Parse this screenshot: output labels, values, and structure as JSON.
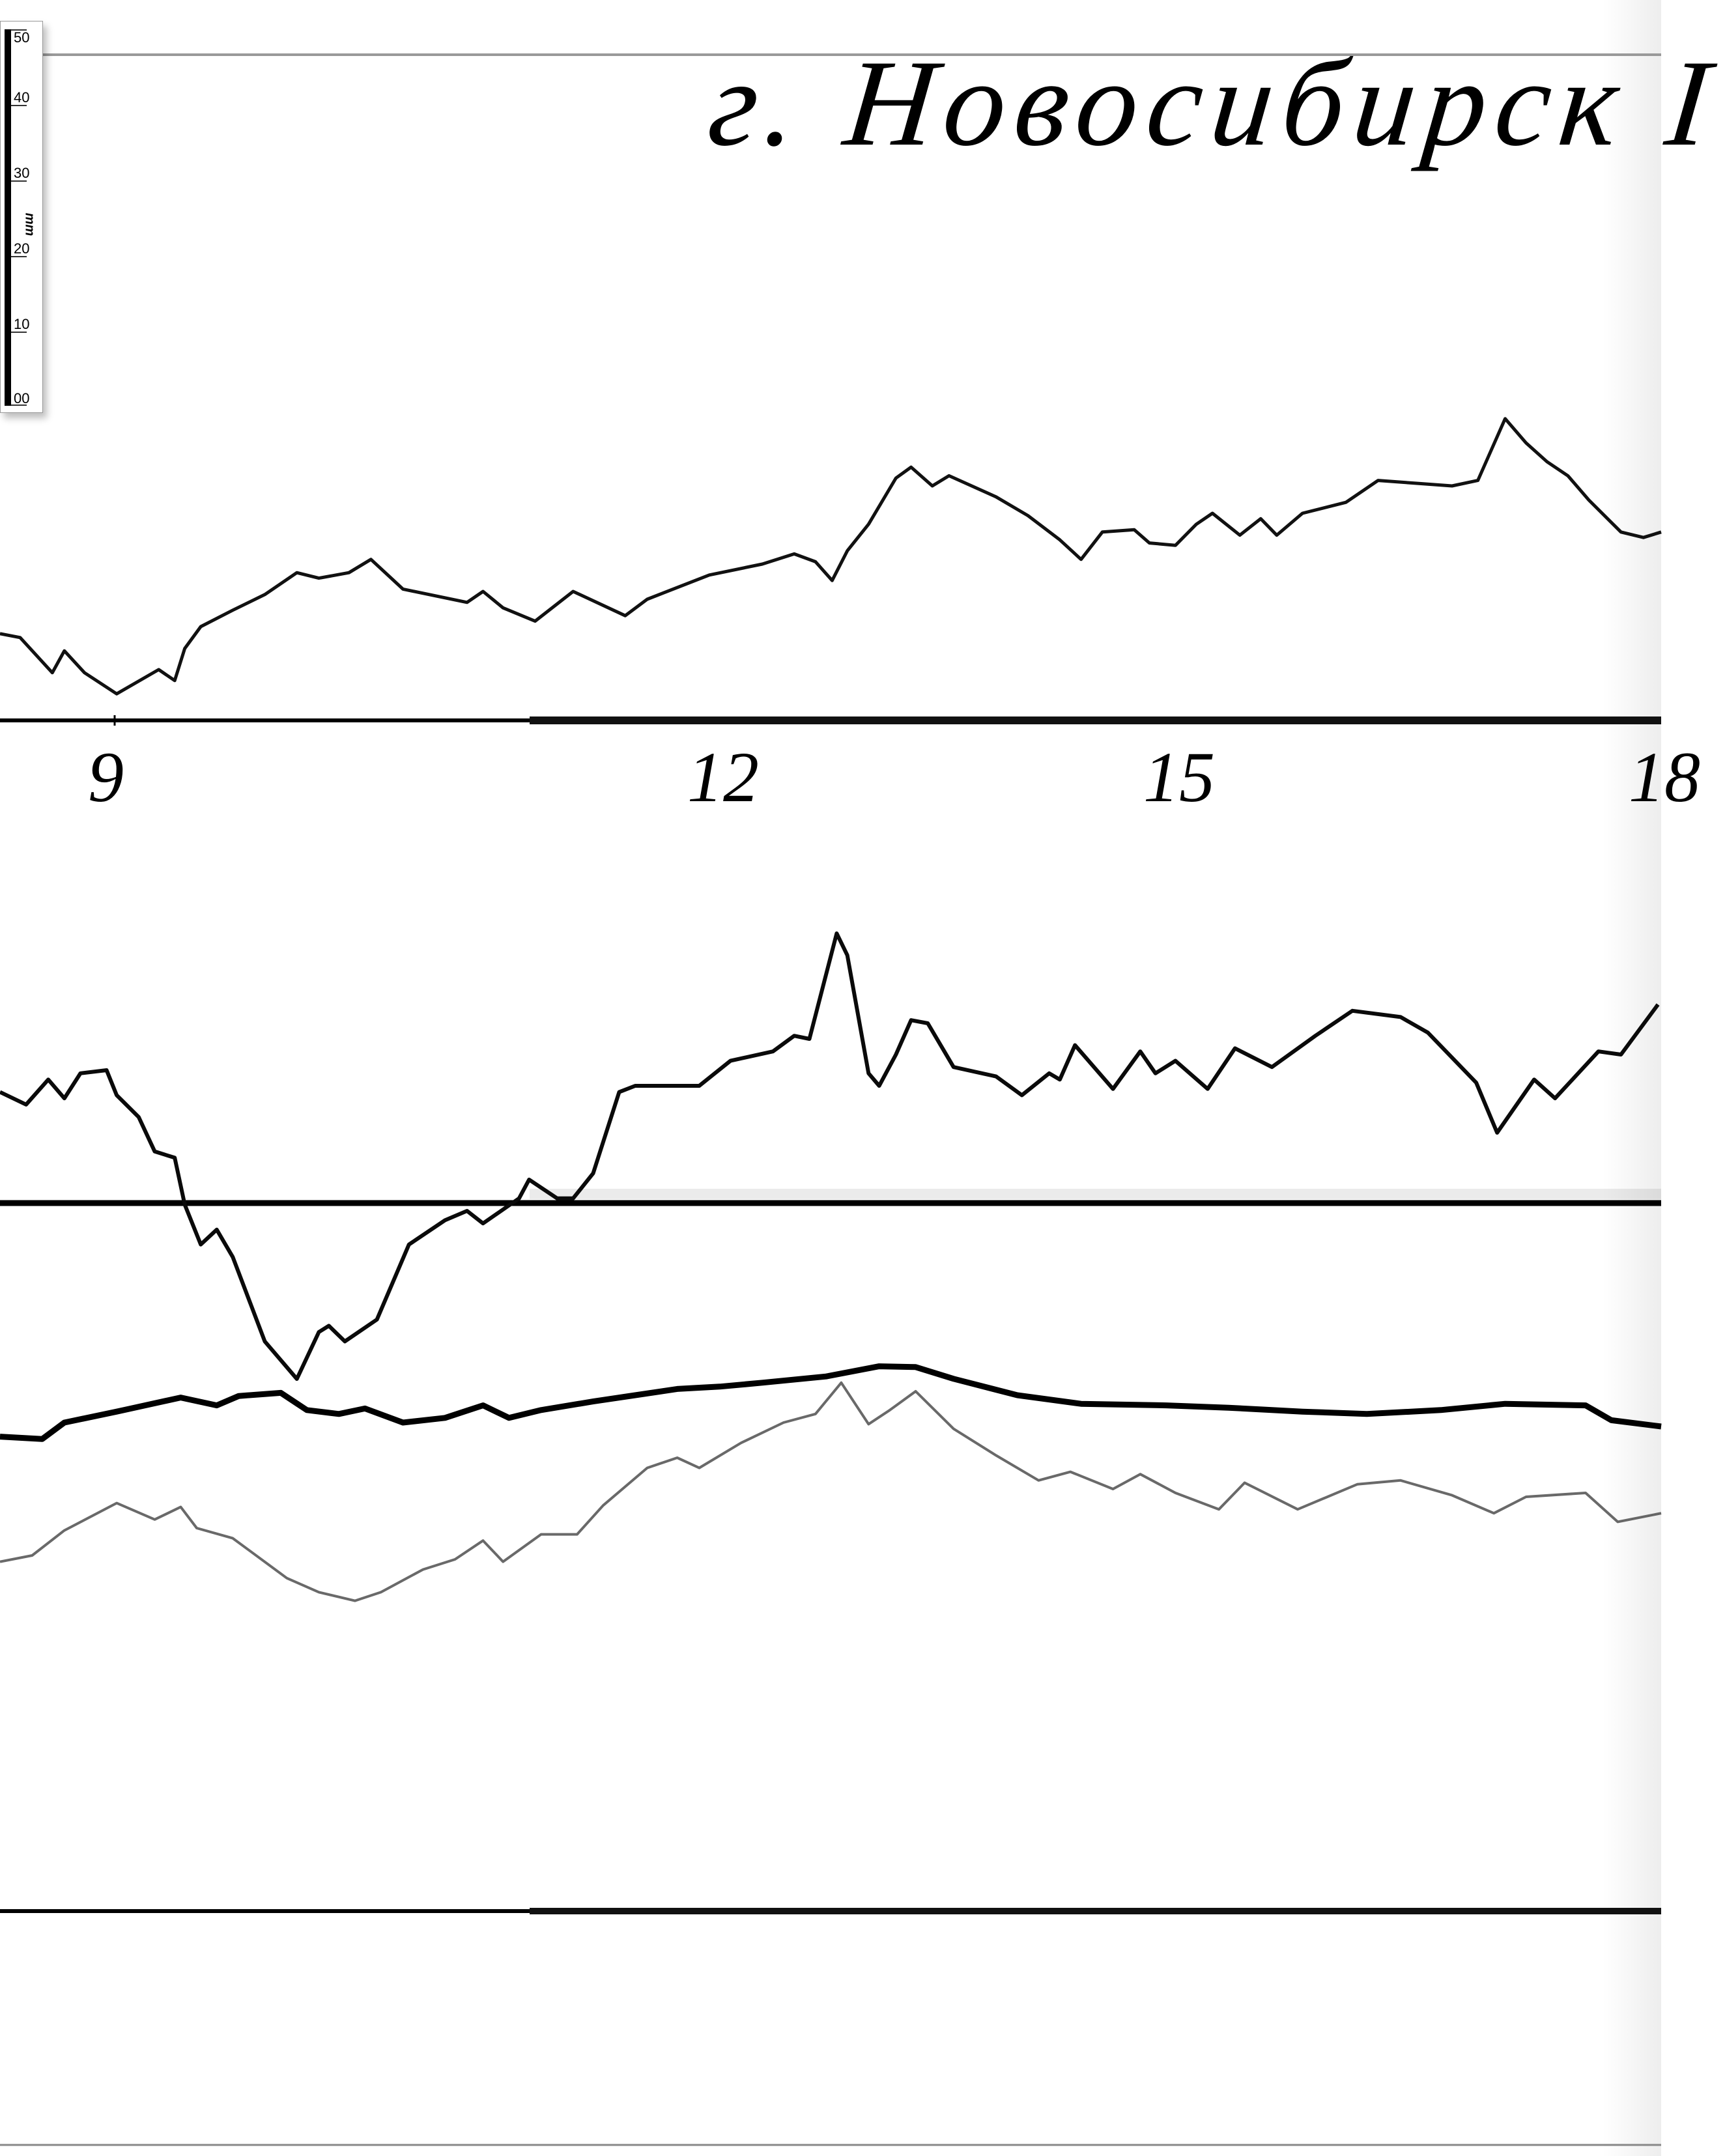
{
  "title": "г. Новосибирск I",
  "scale_bar": {
    "unit": "mm",
    "labels": [
      "50",
      "40",
      "30",
      "20",
      "10",
      "00"
    ]
  },
  "chart_data": {
    "type": "line",
    "title": "г. Новосибирск I",
    "x_unit": "hours",
    "x_ticks": [
      "9",
      "12",
      "15",
      "18"
    ],
    "xlim": [
      8.43,
      18.05
    ],
    "y_unit": "mm",
    "grid": false,
    "series": [
      {
        "baseline": 1,
        "points": [
          [
            8.43,
            11.1
          ],
          [
            8.53,
            10.6
          ],
          [
            8.69,
            6.1
          ],
          [
            8.75,
            8.9
          ],
          [
            8.85,
            6.1
          ],
          [
            9.01,
            3.4
          ],
          [
            9.22,
            6.5
          ],
          [
            9.3,
            5.1
          ],
          [
            9.35,
            9.2
          ],
          [
            9.43,
            12.0
          ],
          [
            9.59,
            14.1
          ],
          [
            9.75,
            16.1
          ],
          [
            9.91,
            18.9
          ],
          [
            10.02,
            18.2
          ],
          [
            10.17,
            18.9
          ],
          [
            10.28,
            20.6
          ],
          [
            10.44,
            16.8
          ],
          [
            10.76,
            15.1
          ],
          [
            10.84,
            16.5
          ],
          [
            10.94,
            14.4
          ],
          [
            11.1,
            12.7
          ],
          [
            11.29,
            16.5
          ],
          [
            11.55,
            13.4
          ],
          [
            11.66,
            15.5
          ],
          [
            11.97,
            18.6
          ],
          [
            12.31,
            20.0
          ],
          [
            12.52,
            21.3
          ],
          [
            12.66,
            20.3
          ],
          [
            12.77,
            17.9
          ],
          [
            12.87,
            21.7
          ],
          [
            13.01,
            25.1
          ],
          [
            13.19,
            31.0
          ],
          [
            13.29,
            32.4
          ],
          [
            13.43,
            30.0
          ],
          [
            13.54,
            31.3
          ],
          [
            13.85,
            28.6
          ],
          [
            14.06,
            26.2
          ],
          [
            14.27,
            23.1
          ],
          [
            14.41,
            20.6
          ],
          [
            14.55,
            24.1
          ],
          [
            14.76,
            24.4
          ],
          [
            14.86,
            22.7
          ],
          [
            15.03,
            22.4
          ],
          [
            15.16,
            25.1
          ],
          [
            15.26,
            26.5
          ],
          [
            15.43,
            23.7
          ],
          [
            15.56,
            25.8
          ],
          [
            15.66,
            23.7
          ],
          [
            15.82,
            26.5
          ],
          [
            16.09,
            27.9
          ],
          [
            16.29,
            30.7
          ],
          [
            16.55,
            30.3
          ],
          [
            16.75,
            30.0
          ],
          [
            16.91,
            30.7
          ],
          [
            17.08,
            38.6
          ],
          [
            17.21,
            35.5
          ],
          [
            17.34,
            33.1
          ],
          [
            17.47,
            31.3
          ],
          [
            17.6,
            28.2
          ],
          [
            17.8,
            24.1
          ],
          [
            17.94,
            23.4
          ],
          [
            18.05,
            24.1
          ]
        ]
      },
      {
        "baseline": 2,
        "points": [
          [
            8.43,
            14.2
          ],
          [
            8.56,
            12.6
          ],
          [
            8.67,
            15.8
          ],
          [
            8.75,
            13.4
          ],
          [
            8.83,
            16.6
          ],
          [
            8.96,
            17.0
          ],
          [
            9.01,
            13.8
          ],
          [
            9.12,
            11.0
          ],
          [
            9.2,
            6.6
          ],
          [
            9.3,
            5.8
          ],
          [
            9.35,
            -0.2
          ],
          [
            9.43,
            -5.3
          ],
          [
            9.51,
            -3.4
          ],
          [
            9.59,
            -6.9
          ],
          [
            9.75,
            -17.7
          ],
          [
            9.91,
            -22.5
          ],
          [
            10.02,
            -16.5
          ],
          [
            10.07,
            -15.7
          ],
          [
            10.15,
            -17.7
          ],
          [
            10.31,
            -14.9
          ],
          [
            10.47,
            -5.3
          ],
          [
            10.65,
            -2.2
          ],
          [
            10.76,
            -1.0
          ],
          [
            10.84,
            -2.6
          ],
          [
            11.02,
            0.6
          ],
          [
            11.07,
            3.0
          ],
          [
            11.21,
            0.6
          ],
          [
            11.29,
            0.6
          ],
          [
            11.39,
            3.8
          ],
          [
            11.52,
            14.2
          ],
          [
            11.6,
            15.0
          ],
          [
            11.92,
            15.0
          ],
          [
            12.1,
            18.2
          ],
          [
            12.38,
            19.4
          ],
          [
            12.52,
            21.4
          ],
          [
            12.62,
            21.0
          ],
          [
            12.8,
            34.5
          ],
          [
            12.87,
            31.7
          ],
          [
            13.01,
            16.6
          ],
          [
            13.08,
            15.0
          ],
          [
            13.19,
            19.0
          ],
          [
            13.29,
            23.4
          ],
          [
            13.4,
            23.0
          ],
          [
            13.57,
            17.4
          ],
          [
            13.85,
            16.2
          ],
          [
            14.02,
            13.8
          ],
          [
            14.2,
            16.6
          ],
          [
            14.27,
            15.8
          ],
          [
            14.37,
            20.2
          ],
          [
            14.62,
            14.6
          ],
          [
            14.8,
            19.4
          ],
          [
            14.9,
            16.6
          ],
          [
            15.03,
            18.2
          ],
          [
            15.23,
            14.6
          ],
          [
            15.4,
            19.8
          ],
          [
            15.63,
            17.4
          ],
          [
            15.9,
            21.4
          ],
          [
            16.13,
            24.6
          ],
          [
            16.43,
            23.8
          ],
          [
            16.6,
            21.8
          ],
          [
            16.9,
            15.4
          ],
          [
            17.03,
            9.0
          ],
          [
            17.26,
            15.8
          ],
          [
            17.39,
            13.4
          ],
          [
            17.66,
            19.4
          ],
          [
            17.8,
            19.0
          ],
          [
            18.03,
            25.4
          ]
        ]
      },
      {
        "baseline": 3,
        "points": [
          [
            8.43,
            60.7
          ],
          [
            8.64,
            60.4
          ],
          [
            8.75,
            62.5
          ],
          [
            9.01,
            63.9
          ],
          [
            9.33,
            65.7
          ],
          [
            9.51,
            64.7
          ],
          [
            9.62,
            65.9
          ],
          [
            9.83,
            66.3
          ],
          [
            9.96,
            64.1
          ],
          [
            10.12,
            63.6
          ],
          [
            10.25,
            64.3
          ],
          [
            10.44,
            62.5
          ],
          [
            10.65,
            63.1
          ],
          [
            10.84,
            64.7
          ],
          [
            10.97,
            63.1
          ],
          [
            11.13,
            64.1
          ],
          [
            11.39,
            65.2
          ],
          [
            11.6,
            66.0
          ],
          [
            11.81,
            66.8
          ],
          [
            12.03,
            67.1
          ],
          [
            12.31,
            67.6
          ],
          [
            12.73,
            68.4
          ],
          [
            13.08,
            69.7
          ],
          [
            13.32,
            69.6
          ],
          [
            13.57,
            68.1
          ],
          [
            13.99,
            66.0
          ],
          [
            14.41,
            64.9
          ],
          [
            14.97,
            64.7
          ],
          [
            15.36,
            64.4
          ],
          [
            15.82,
            63.9
          ],
          [
            16.22,
            63.6
          ],
          [
            16.68,
            64.1
          ],
          [
            17.08,
            64.9
          ],
          [
            17.58,
            64.7
          ],
          [
            17.74,
            62.8
          ],
          [
            18.05,
            62.0
          ]
        ]
      },
      {
        "baseline": 3,
        "points": [
          [
            8.43,
            44.7
          ],
          [
            8.59,
            45.5
          ],
          [
            8.75,
            48.7
          ],
          [
            9.01,
            52.2
          ],
          [
            9.2,
            50.1
          ],
          [
            9.33,
            51.7
          ],
          [
            9.41,
            49.0
          ],
          [
            9.59,
            47.7
          ],
          [
            9.86,
            42.6
          ],
          [
            10.02,
            40.8
          ],
          [
            10.2,
            39.7
          ],
          [
            10.33,
            40.8
          ],
          [
            10.54,
            43.7
          ],
          [
            10.7,
            45.0
          ],
          [
            10.84,
            47.4
          ],
          [
            10.94,
            44.7
          ],
          [
            11.13,
            48.2
          ],
          [
            11.31,
            48.2
          ],
          [
            11.44,
            51.9
          ],
          [
            11.66,
            56.7
          ],
          [
            11.81,
            58.0
          ],
          [
            11.92,
            56.7
          ],
          [
            12.17,
            59.9
          ],
          [
            12.45,
            62.5
          ],
          [
            12.66,
            63.6
          ],
          [
            12.83,
            67.6
          ],
          [
            13.01,
            62.3
          ],
          [
            13.15,
            64.1
          ],
          [
            13.32,
            66.5
          ],
          [
            13.57,
            61.7
          ],
          [
            13.85,
            58.3
          ],
          [
            14.13,
            55.1
          ],
          [
            14.34,
            56.2
          ],
          [
            14.62,
            54.0
          ],
          [
            14.8,
            55.9
          ],
          [
            15.03,
            53.5
          ],
          [
            15.3,
            51.4
          ],
          [
            15.46,
            54.8
          ],
          [
            15.79,
            51.4
          ],
          [
            16.16,
            54.6
          ],
          [
            16.43,
            55.1
          ],
          [
            16.75,
            53.2
          ],
          [
            17.01,
            50.9
          ],
          [
            17.21,
            53.0
          ],
          [
            17.58,
            53.5
          ],
          [
            17.78,
            49.8
          ],
          [
            18.05,
            50.9
          ]
        ]
      }
    ]
  }
}
